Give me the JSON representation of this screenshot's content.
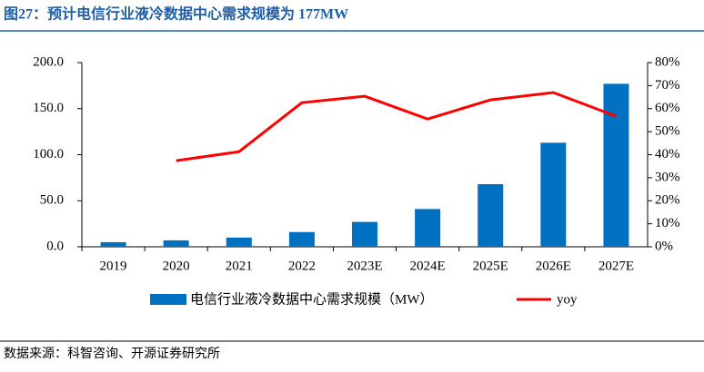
{
  "chart_data": {
    "type": "bar-line",
    "title": "图27：预计电信行业液冷数据中心需求规模为 177MW",
    "source": "数据来源：科智咨询、开源证券研究所",
    "categories": [
      "2019",
      "2020",
      "2021",
      "2022",
      "2023E",
      "2024E",
      "2025E",
      "2026E",
      "2027E"
    ],
    "series": [
      {
        "name": "电信行业液冷数据中心需求规模（MW）",
        "type": "bar",
        "color": "#0070c0",
        "values": [
          5,
          7,
          10,
          16,
          27,
          41,
          68,
          113,
          177
        ]
      },
      {
        "name": "yoy",
        "type": "line",
        "color": "#ff0000",
        "axis": "y2",
        "values": [
          null,
          37.4,
          41.3,
          62.6,
          65.4,
          55.5,
          63.8,
          67,
          56.7
        ]
      }
    ],
    "ylim": [
      0,
      200
    ],
    "yticks": [
      {
        "value": 0,
        "label": "0.0"
      },
      {
        "value": 50,
        "label": "50.0"
      },
      {
        "value": 100,
        "label": "100.0"
      },
      {
        "value": 150,
        "label": "150.0"
      },
      {
        "value": 200,
        "label": "200.0"
      }
    ],
    "y2lim": [
      0,
      80
    ],
    "y2ticks": [
      {
        "value": 0,
        "label": "0%"
      },
      {
        "value": 10,
        "label": "10%"
      },
      {
        "value": 20,
        "label": "20%"
      },
      {
        "value": 30,
        "label": "30%"
      },
      {
        "value": 40,
        "label": "40%"
      },
      {
        "value": 50,
        "label": "50%"
      },
      {
        "value": 60,
        "label": "60%"
      },
      {
        "value": 70,
        "label": "70%"
      },
      {
        "value": 80,
        "label": "80%"
      }
    ]
  }
}
